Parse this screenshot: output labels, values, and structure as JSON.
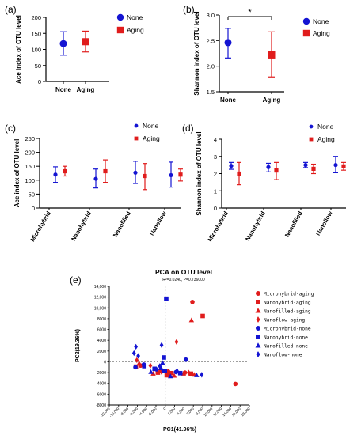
{
  "panel_labels": {
    "a": "(a)",
    "b": "(b)",
    "c": "(c)",
    "d": "(d)",
    "e": "(e)"
  },
  "colors": {
    "none": "#1414d2",
    "aging": "#e01c1c",
    "axis": "#000000"
  },
  "chart_data": [
    {
      "panel": "(a)",
      "type": "scatter",
      "ylabel": "Ace index of OTU level",
      "categories": [
        "None",
        "Aging"
      ],
      "ylim": [
        0,
        200
      ],
      "yticks": [
        0,
        50,
        100,
        150,
        200
      ],
      "series": [
        {
          "name": "None",
          "marker": "circle",
          "mean": 118,
          "low": 82,
          "high": 155
        },
        {
          "name": "Aging",
          "marker": "square",
          "mean": 124,
          "low": 92,
          "high": 157
        }
      ],
      "legend": "right"
    },
    {
      "panel": "(b)",
      "type": "scatter",
      "ylabel": "Shannon index of OTU level",
      "categories": [
        "None",
        "Aging"
      ],
      "ylim": [
        1.5,
        3.0
      ],
      "yticks": [
        1.5,
        2.0,
        2.5,
        3.0
      ],
      "yticklabels": [
        "1.5",
        "2.0",
        "2.5",
        "3.0"
      ],
      "series": [
        {
          "name": "None",
          "marker": "circle",
          "mean": 2.46,
          "low": 2.16,
          "high": 2.74
        },
        {
          "name": "Aging",
          "marker": "square",
          "mean": 2.22,
          "low": 1.79,
          "high": 2.67
        }
      ],
      "significance": "*",
      "legend": "right"
    },
    {
      "panel": "(c)",
      "type": "scatter",
      "ylabel": "Ace index of OTU level",
      "categories": [
        "Microhybrid",
        "Nanohybrid",
        "Nanofilled",
        "Nanoflow"
      ],
      "ylim": [
        0,
        250
      ],
      "yticks": [
        0,
        50,
        100,
        150,
        200,
        250
      ],
      "series": [
        {
          "name": "None",
          "marker": "circle",
          "mean": [
            120,
            105,
            127,
            118
          ],
          "low": [
            92,
            72,
            88,
            75
          ],
          "high": [
            148,
            140,
            168,
            165
          ]
        },
        {
          "name": "Aging",
          "marker": "square",
          "mean": [
            132,
            132,
            115,
            120
          ],
          "low": [
            115,
            92,
            66,
            97
          ],
          "high": [
            150,
            173,
            160,
            140
          ]
        }
      ],
      "legend": "top-right"
    },
    {
      "panel": "(d)",
      "type": "scatter",
      "ylabel": "Shannon index of OTU level",
      "categories": [
        "Microhybrid",
        "Nanohybrid",
        "Nanofilled",
        "Nanoflow"
      ],
      "ylim": [
        0,
        4
      ],
      "yticks": [
        0,
        1,
        2,
        3,
        4
      ],
      "series": [
        {
          "name": "None",
          "marker": "circle",
          "mean": [
            2.45,
            2.38,
            2.5,
            2.5
          ],
          "low": [
            2.25,
            2.1,
            2.35,
            2.05
          ],
          "high": [
            2.65,
            2.6,
            2.65,
            3.0
          ]
        },
        {
          "name": "Aging",
          "marker": "square",
          "mean": [
            2.0,
            2.18,
            2.28,
            2.42
          ],
          "low": [
            1.35,
            1.65,
            2.0,
            2.2
          ],
          "high": [
            2.65,
            2.65,
            2.55,
            2.65
          ]
        }
      ],
      "legend": "top-right"
    },
    {
      "panel": "(e)",
      "type": "scatter",
      "title": "PCA on OTU level",
      "subtitle": "R²=0.0240, P=0.736000",
      "xlabel": "PC1(41.96%)",
      "ylabel": "PC2(19.36%)",
      "xlim": [
        -12000,
        18000
      ],
      "ylim": [
        -8000,
        14000
      ],
      "xticks": [
        -12000,
        -10000,
        -8000,
        -6000,
        -4000,
        -2000,
        0,
        2000,
        4000,
        6000,
        8000,
        10000,
        12000,
        14000,
        16000,
        18000
      ],
      "xticklabels": [
        "-12,000",
        "-10,000",
        "-8,000",
        "-6,000",
        "-4,000",
        "-2,000",
        "0",
        "2,000",
        "4,000",
        "6,000",
        "8,000",
        "10,000",
        "12,000",
        "14,000",
        "16,000",
        "18,000"
      ],
      "yticks": [
        -8000,
        -6000,
        -4000,
        -2000,
        0,
        2000,
        4000,
        6000,
        8000,
        10000,
        12000,
        14000
      ],
      "yticklabels": [
        "-8000",
        "-6000",
        "-4000",
        "-2000",
        "0",
        "2000",
        "4000",
        "6000",
        "8000",
        "10,000",
        "12,000",
        "14,000"
      ],
      "series": [
        {
          "name": "Microhybrid-aging",
          "marker": "circle",
          "color": "#e01c1c",
          "points": [
            [
              5800,
              11100
            ],
            [
              15000,
              -4100
            ],
            [
              -5300,
              -700
            ],
            [
              -1000,
              -1500
            ],
            [
              600,
              -1800
            ],
            [
              4200,
              -2000
            ]
          ]
        },
        {
          "name": "Nanohybrid-aging",
          "marker": "square",
          "color": "#e01c1c",
          "points": [
            [
              8000,
              8500
            ],
            [
              -6300,
              -900
            ],
            [
              -1600,
              -2000
            ],
            [
              1300,
              -2100
            ],
            [
              5500,
              -2200
            ],
            [
              300,
              -2500
            ]
          ]
        },
        {
          "name": "Nanofilled-aging",
          "marker": "triangle",
          "color": "#e01c1c",
          "points": [
            [
              5600,
              7700
            ],
            [
              -5600,
              -300
            ],
            [
              -2600,
              -2200
            ],
            [
              1900,
              -2600
            ],
            [
              3900,
              -2200
            ],
            [
              6200,
              -2400
            ]
          ]
        },
        {
          "name": "Nanoflow-aging",
          "marker": "diamond",
          "color": "#e01c1c",
          "points": [
            [
              2400,
              3700
            ],
            [
              -3200,
              -700
            ],
            [
              -800,
              -1900
            ],
            [
              900,
              -2300
            ],
            [
              5000,
              -2000
            ],
            [
              -6100,
              300
            ]
          ]
        },
        {
          "name": "Microhybrid-none",
          "marker": "circle",
          "color": "#1414d2",
          "points": [
            [
              4400,
              400
            ],
            [
              -4600,
              -500
            ],
            [
              -1900,
              -1400
            ],
            [
              -400,
              -1700
            ],
            [
              2300,
              -1900
            ],
            [
              -6400,
              -1000
            ]
          ]
        },
        {
          "name": "Nanohybrid-none",
          "marker": "square",
          "color": "#1414d2",
          "points": [
            [
              200,
              11700
            ],
            [
              -300,
              800
            ],
            [
              -2300,
              -1300
            ],
            [
              -100,
              -1700
            ],
            [
              3200,
              -2100
            ],
            [
              -4500,
              -800
            ]
          ]
        },
        {
          "name": "Nanofilled-none",
          "marker": "triangle",
          "color": "#1414d2",
          "points": [
            [
              -900,
              -1200
            ],
            [
              -3100,
              -1900
            ],
            [
              1100,
              -2700
            ],
            [
              2500,
              -1600
            ],
            [
              6700,
              -2500
            ],
            [
              -600,
              -200
            ]
          ]
        },
        {
          "name": "Nanoflow-none",
          "marker": "diamond",
          "color": "#1414d2",
          "points": [
            [
              -6700,
              1600
            ],
            [
              -6300,
              2800
            ],
            [
              -800,
              3100
            ],
            [
              7800,
              -2400
            ],
            [
              -1200,
              -800
            ],
            [
              -5800,
              1100
            ]
          ]
        }
      ],
      "legend": "right"
    }
  ]
}
